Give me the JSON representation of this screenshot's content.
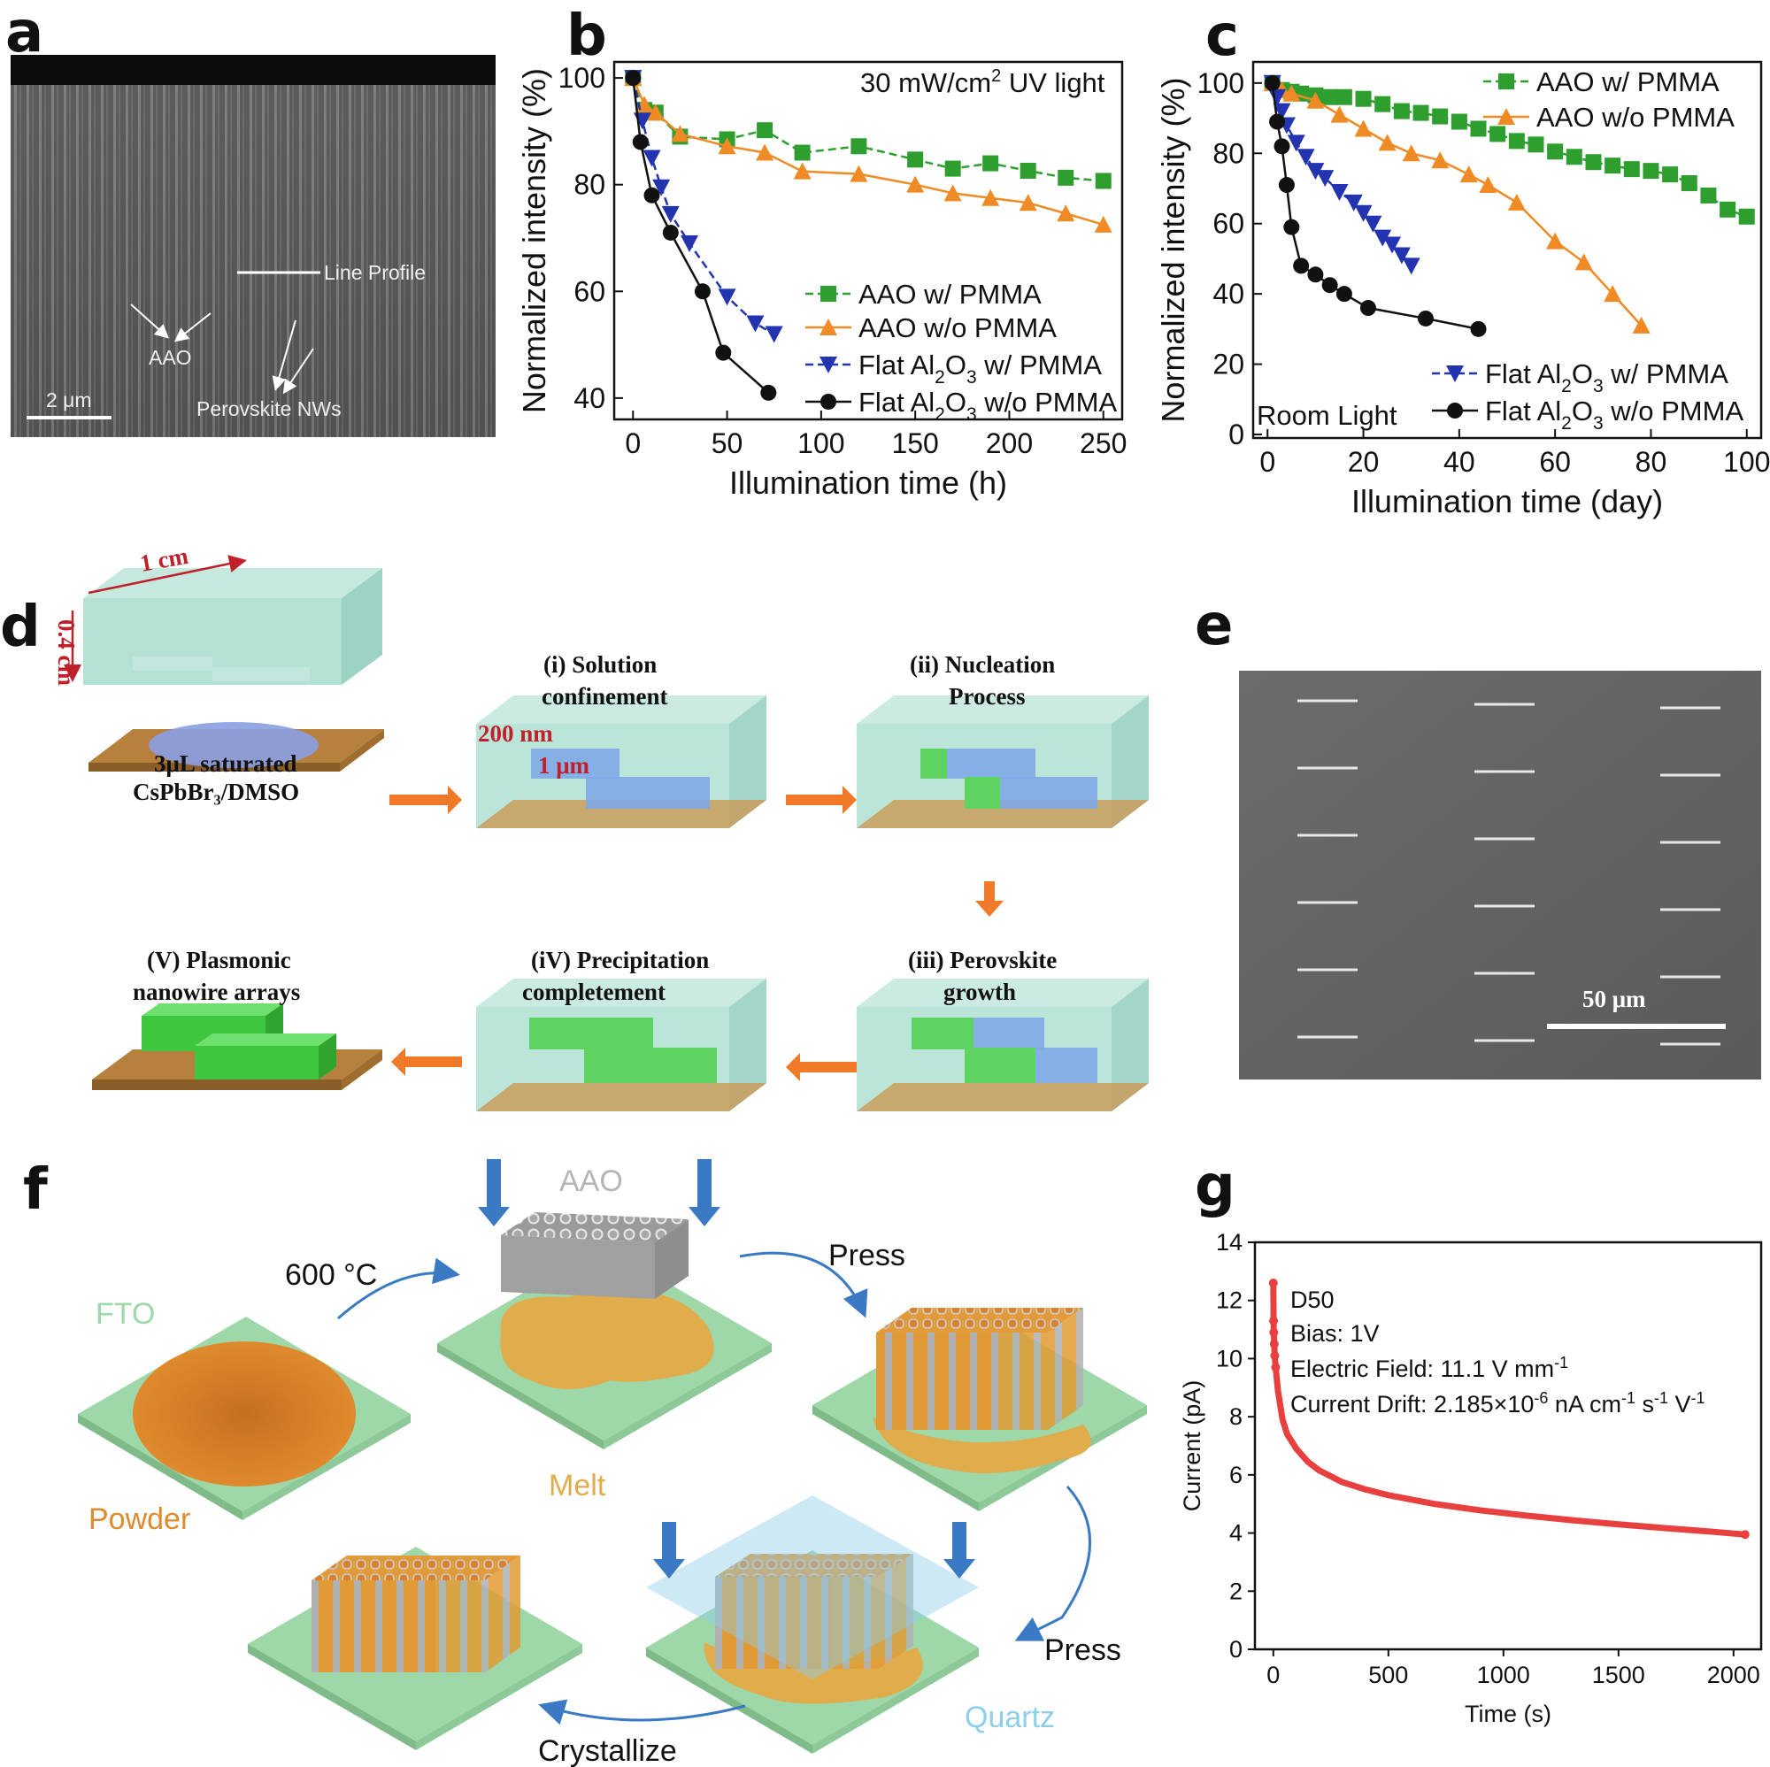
{
  "panels": {
    "a": {
      "label": "a",
      "scalebar": "2 μm",
      "annotations": {
        "line_profile": "Line Profile",
        "aao": "AAO",
        "nws": "Perovskite NWs"
      }
    },
    "d": {
      "label": "d",
      "dims": {
        "width": "1 cm",
        "height": "0.4 cm"
      },
      "solution": {
        "line1": "3μL saturated",
        "line2": "CsPbBr₃/DMSO"
      },
      "steps": {
        "s1": {
          "line1": "(i) Solution",
          "line2": "confinement",
          "dim1": "200 nm",
          "dim2": "1 μm"
        },
        "s2": {
          "line1": "(ii) Nucleation",
          "line2": "Process"
        },
        "s3": {
          "line1": "(iii) Perovskite",
          "line2": "growth"
        },
        "s4": {
          "line1": "(iV) Precipitation",
          "line2": "completement"
        },
        "s5": {
          "line1": "(V) Plasmonic",
          "line2": "nanowire arrays"
        }
      }
    },
    "e": {
      "label": "e",
      "scalebar": "50 μm"
    },
    "f": {
      "label": "f",
      "texts": {
        "aao": "AAO",
        "temp": "600 °C",
        "press1": "Press",
        "fto": "FTO",
        "melt": "Melt",
        "powder": "Powder",
        "press2": "Press",
        "quartz": "Quartz",
        "crystallize": "Crystallize"
      },
      "colors": {
        "substrate": "#9ed7a8",
        "powder": "#d9822b",
        "melt": "#e0ac4c",
        "quartz": "#8ecfe8",
        "arrow": "#3a79c4"
      }
    }
  },
  "chart_data": [
    {
      "id": "b",
      "label": "b",
      "type": "line",
      "title": "30 mW/cm² UV light",
      "title_parts": {
        "pre": "30 mW/cm",
        "sup": "2",
        "post": " UV light"
      },
      "xlabel": "Illumination time (h)",
      "ylabel": "Normalized intensity (%)",
      "xlim": [
        -10,
        260
      ],
      "ylim": [
        36,
        103
      ],
      "xticks": [
        0,
        50,
        100,
        150,
        200,
        250
      ],
      "yticks": [
        40,
        60,
        80,
        100
      ],
      "legend_position": "bottom-right",
      "series": [
        {
          "name": "AAO w/ PMMA",
          "name_parts": [
            "AAO w/ PMMA"
          ],
          "color": "#2e9e2e",
          "marker": "square",
          "dash": "9,5",
          "x": [
            0,
            6,
            12,
            25,
            50,
            70,
            90,
            120,
            150,
            170,
            190,
            210,
            230,
            250
          ],
          "y": [
            100,
            94,
            93.5,
            89,
            88.5,
            90.2,
            86,
            87.2,
            84.7,
            83,
            84,
            82.6,
            81.3,
            80.7
          ]
        },
        {
          "name": "AAO w/o PMMA",
          "name_parts": [
            "AAO w/o PMMA"
          ],
          "color": "#f08a24",
          "marker": "triangle",
          "dash": "",
          "x": [
            0,
            6,
            12,
            25,
            50,
            70,
            90,
            120,
            150,
            170,
            190,
            210,
            230,
            250
          ],
          "y": [
            100,
            95,
            93.5,
            89.5,
            87.2,
            86,
            82.5,
            82,
            80,
            78.4,
            77.5,
            76.6,
            74.6,
            72.5
          ]
        },
        {
          "name": "Flat Al2O3 w/ PMMA",
          "name_parts": [
            "Flat Al",
            "2",
            "O",
            "3",
            " w/ PMMA"
          ],
          "color": "#2234b0",
          "marker": "triangle-down",
          "dash": "9,5",
          "x": [
            0,
            5,
            10,
            15,
            20,
            30,
            50,
            65,
            75
          ],
          "y": [
            100,
            92,
            85,
            79.5,
            74.5,
            69,
            59,
            54,
            52
          ]
        },
        {
          "name": "Flat Al2O3 w/o PMMA",
          "name_parts": [
            "Flat Al",
            "2",
            "O",
            "3",
            " w/o PMMA"
          ],
          "color": "#111111",
          "marker": "circle",
          "dash": "",
          "x": [
            0,
            4,
            10,
            20,
            37,
            48,
            72
          ],
          "y": [
            100,
            88,
            78,
            71,
            60,
            48.5,
            41
          ]
        }
      ]
    },
    {
      "id": "c",
      "label": "c",
      "type": "line",
      "title": "Room Light",
      "xlabel": "Illumination time (day)",
      "ylabel": "Normalized intensity (%)",
      "xlim": [
        -3,
        103
      ],
      "ylim": [
        -1,
        106
      ],
      "xticks": [
        0,
        20,
        40,
        60,
        80,
        100
      ],
      "yticks": [
        0,
        20,
        40,
        60,
        80,
        100
      ],
      "legend_position": "top-right and bottom-right",
      "series": [
        {
          "name": "AAO w/ PMMA",
          "name_parts": [
            "AAO w/ PMMA"
          ],
          "color": "#2e9e2e",
          "marker": "square",
          "dash": "9,5",
          "x": [
            1,
            3,
            5,
            7,
            10,
            13,
            16,
            20,
            24,
            28,
            32,
            36,
            40,
            44,
            48,
            52,
            56,
            60,
            64,
            68,
            72,
            76,
            80,
            84,
            88,
            92,
            96,
            100
          ],
          "y": [
            100,
            98,
            97.5,
            97,
            96.5,
            96,
            96,
            95.5,
            94,
            92,
            91.5,
            90.5,
            89,
            87,
            85.5,
            83.5,
            82.5,
            80.5,
            79,
            77.5,
            76.5,
            75.5,
            75,
            74,
            71.5,
            68,
            64,
            62
          ]
        },
        {
          "name": "AAO w/o PMMA",
          "name_parts": [
            "AAO w/o PMMA"
          ],
          "color": "#f08a24",
          "marker": "triangle",
          "dash": "",
          "x": [
            1,
            3,
            5,
            10,
            15,
            20,
            25,
            30,
            36,
            42,
            46,
            52,
            60,
            66,
            72,
            78
          ],
          "y": [
            100,
            98,
            97,
            95,
            91,
            87,
            83,
            80,
            78,
            74,
            71,
            66,
            55,
            49,
            40,
            31
          ]
        },
        {
          "name": "Flat Al2O3 w/ PMMA",
          "name_parts": [
            "Flat Al",
            "2",
            "O",
            "3",
            " w/ PMMA"
          ],
          "color": "#2234b0",
          "marker": "triangle-down",
          "dash": "9,5",
          "x": [
            1,
            2,
            3,
            4,
            6,
            8,
            10,
            12,
            15,
            18,
            20,
            22,
            24,
            26,
            28,
            30
          ],
          "y": [
            100,
            96,
            92,
            88,
            83,
            79,
            75,
            73,
            69,
            66,
            63,
            60,
            56,
            54,
            51,
            48
          ]
        },
        {
          "name": "Flat Al2O3 w/o PMMA",
          "name_parts": [
            "Flat Al",
            "2",
            "O",
            "3",
            " w/o PMMA"
          ],
          "color": "#111111",
          "marker": "circle",
          "dash": "",
          "x": [
            1,
            2,
            3,
            4,
            5,
            7,
            10,
            13,
            16,
            21,
            33,
            44
          ],
          "y": [
            100,
            89,
            82,
            71,
            59,
            48,
            45.5,
            42.5,
            40,
            36,
            33,
            30
          ]
        }
      ]
    },
    {
      "id": "g",
      "label": "g",
      "type": "scatter",
      "xlabel": "Time (s)",
      "ylabel": "Current (pA)",
      "xlim": [
        -80,
        2120
      ],
      "ylim": [
        0,
        14
      ],
      "xticks": [
        0,
        500,
        1000,
        1500,
        2000
      ],
      "yticks": [
        0,
        2,
        4,
        6,
        8,
        10,
        12,
        14
      ],
      "annotations": {
        "sample": "D50",
        "bias": "Bias: 1V",
        "field": {
          "pre": "Electric Field: 11.1 V mm",
          "sup": "-1"
        },
        "drift": {
          "pre": "Current Drift: 2.185×10",
          "sup1": "-6",
          "mid": " nA cm",
          "sup2": "-1",
          "mid2": " s",
          "sup3": "-1",
          "mid3": " V",
          "sup4": "-1"
        }
      },
      "series": [
        {
          "name": "D50",
          "color": "#e8403e",
          "x": [
            0,
            1,
            2,
            4,
            6,
            10,
            20,
            40,
            60,
            100,
            150,
            200,
            300,
            400,
            500,
            700,
            900,
            1100,
            1300,
            1500,
            1700,
            1900,
            2050
          ],
          "y": [
            12.6,
            11.3,
            10.9,
            10.5,
            10.1,
            9.7,
            8.9,
            7.9,
            7.4,
            6.9,
            6.45,
            6.15,
            5.75,
            5.5,
            5.3,
            5.0,
            4.78,
            4.6,
            4.44,
            4.3,
            4.17,
            4.05,
            3.95
          ]
        }
      ]
    }
  ]
}
